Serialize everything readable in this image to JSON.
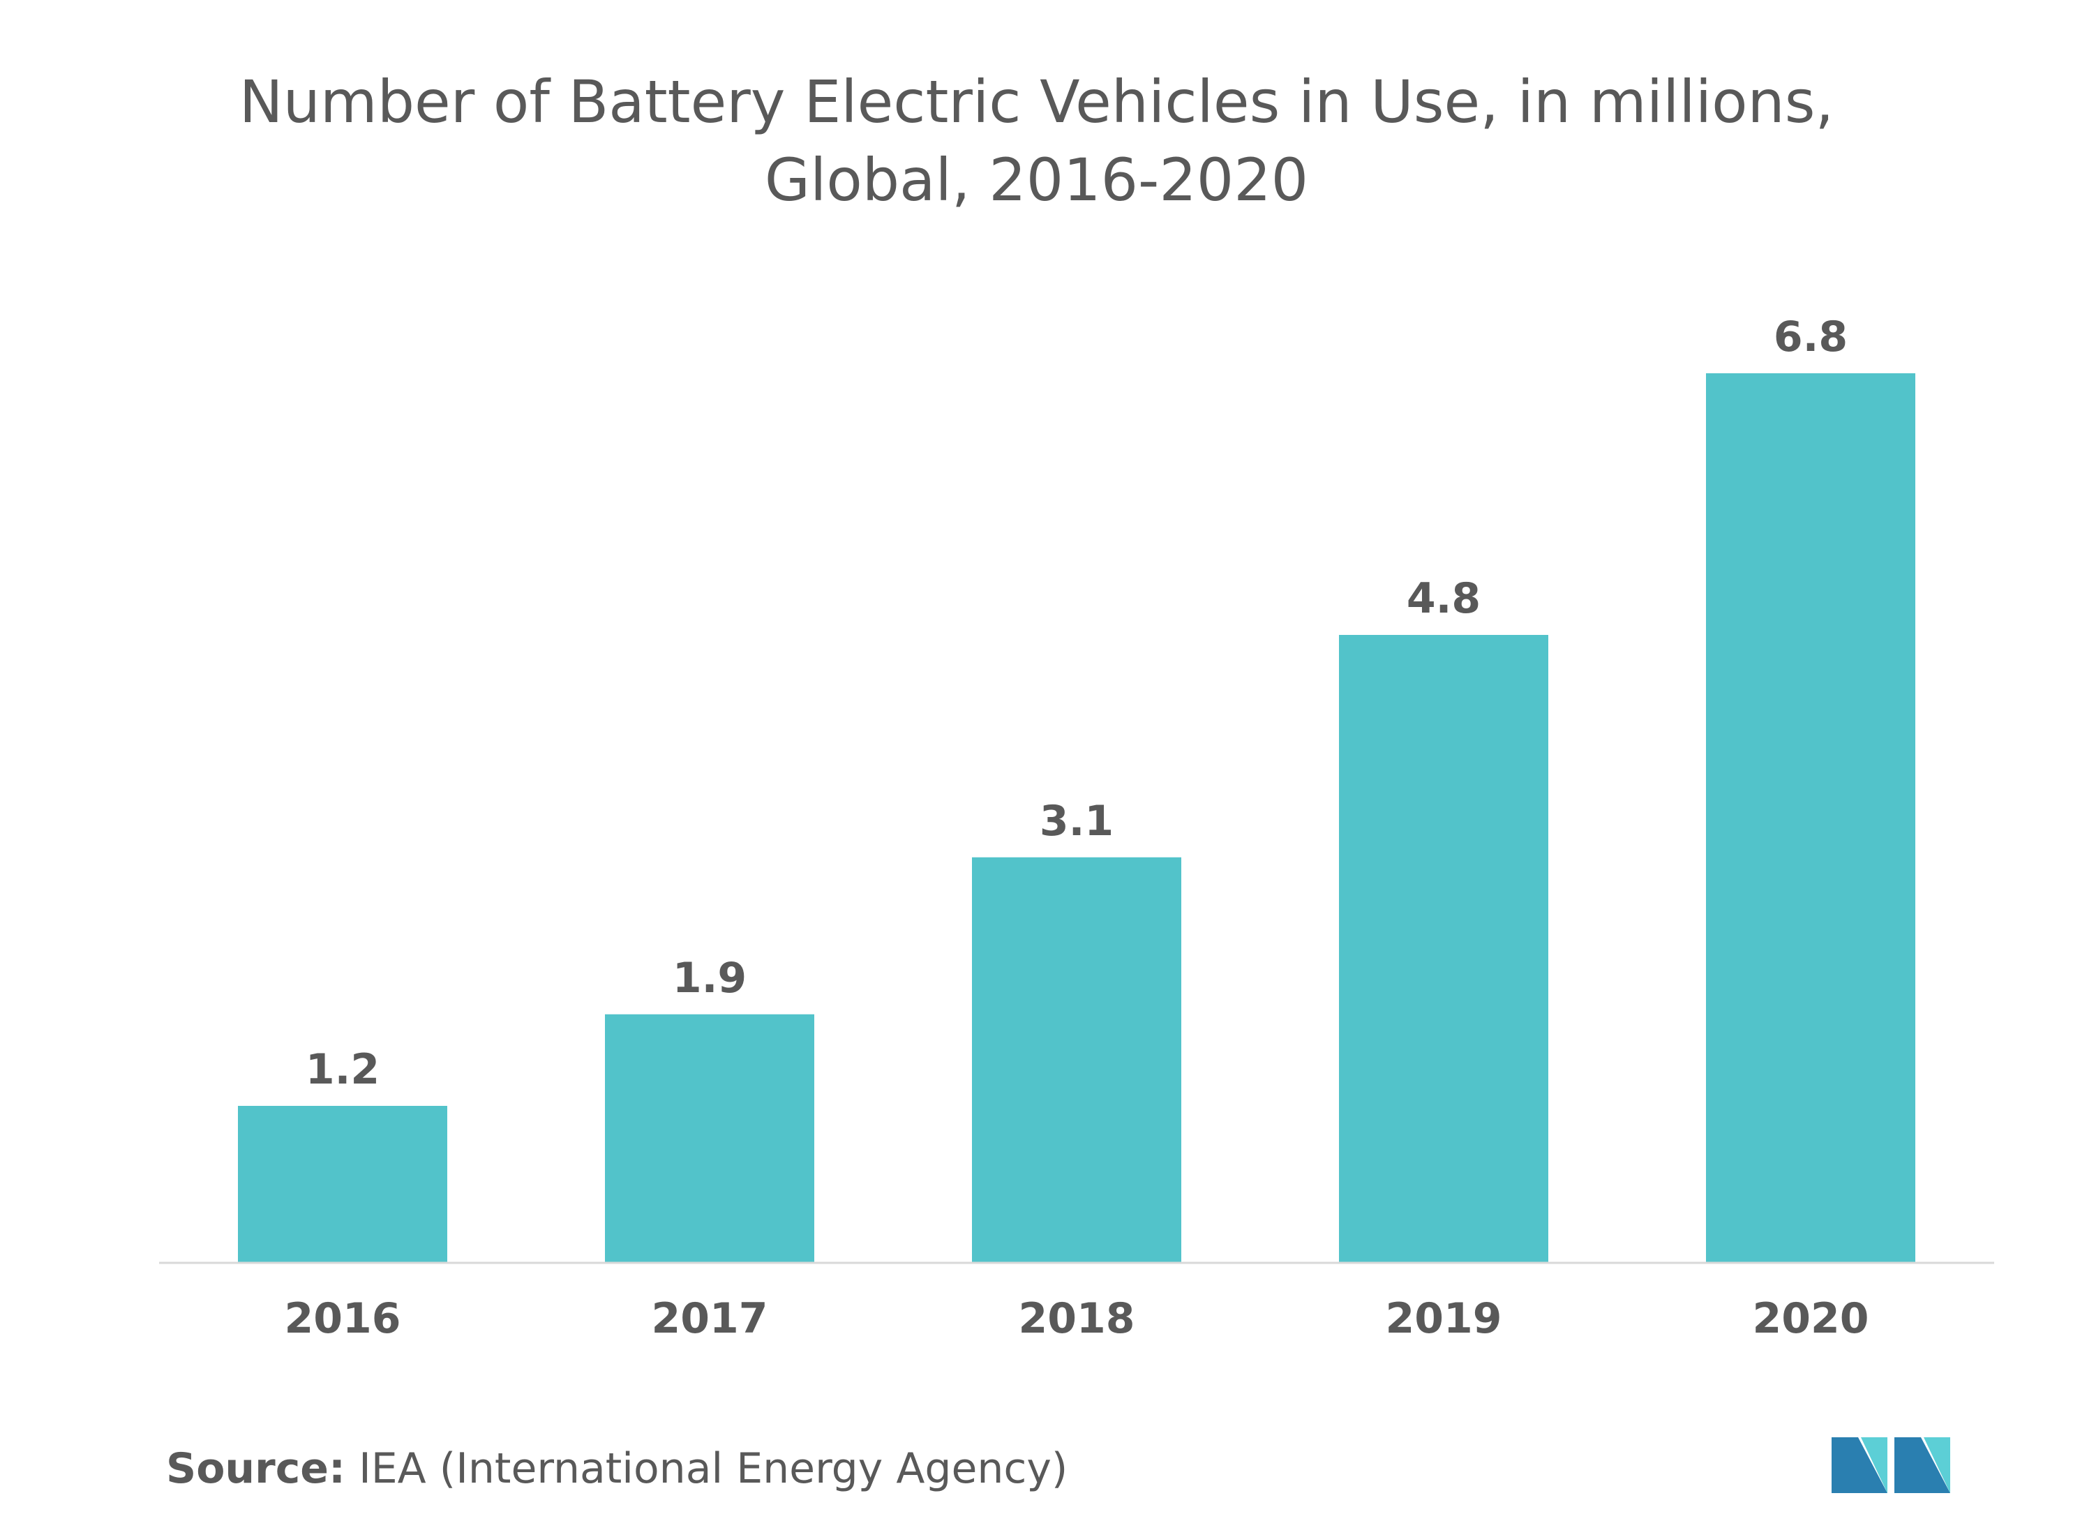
{
  "chart_data": {
    "type": "bar",
    "title_lines": [
      "Number of Battery Electric Vehicles in Use, in millions,",
      "Global, 2016-2020"
    ],
    "categories": [
      "2016",
      "2017",
      "2018",
      "2019",
      "2020"
    ],
    "values": [
      1.2,
      1.9,
      3.1,
      4.8,
      6.8
    ],
    "value_labels": [
      "1.2",
      "1.9",
      "3.1",
      "4.8",
      "6.8"
    ],
    "xlabel": "",
    "ylabel": "",
    "ylim": [
      0,
      6.8
    ],
    "grid": false,
    "legend": "none",
    "bar_color": "#52c3ca",
    "axis_color": "#d9d9d9",
    "label_color": "#595959"
  },
  "footer": {
    "source_label": "Source:",
    "source_text": " IEA (International Energy Agency)"
  },
  "logo": {
    "icon": "mordor-intelligence-logo-icon",
    "colors": [
      "#2a7fb0",
      "#5ccfd6"
    ]
  }
}
